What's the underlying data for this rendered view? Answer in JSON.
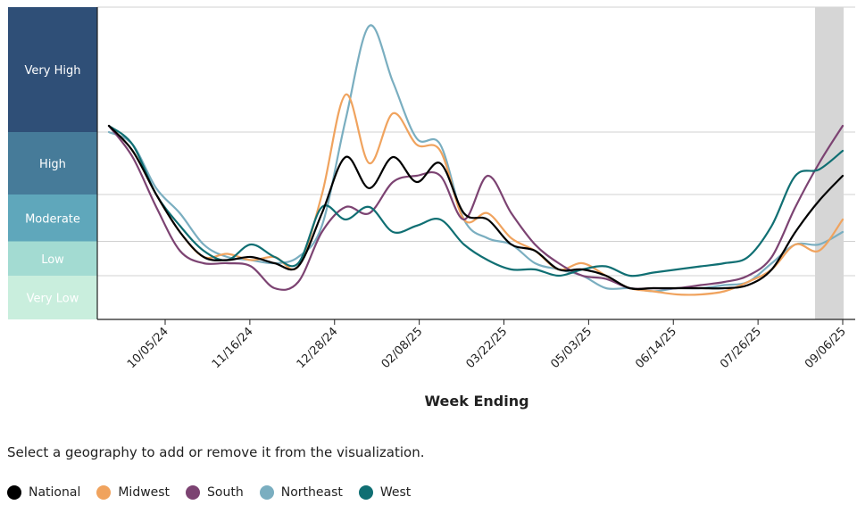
{
  "chart_data": {
    "type": "line",
    "xlabel": "Week Ending",
    "ylabel": "",
    "x_ticks": [
      "10/05/24",
      "11/16/24",
      "12/28/24",
      "02/08/25",
      "03/22/25",
      "05/03/25",
      "06/14/25",
      "07/26/25",
      "09/06/25"
    ],
    "levels": [
      {
        "name": "Very High",
        "from": 4,
        "to": 6,
        "color": "#2f4f77"
      },
      {
        "name": "High",
        "from": 3,
        "to": 4,
        "color": "#467b99"
      },
      {
        "name": "Moderate",
        "from": 2.25,
        "to": 3,
        "color": "#5fa7bb"
      },
      {
        "name": "Low",
        "from": 1.7,
        "to": 2.25,
        "color": "#a3dbd2"
      },
      {
        "name": "Very Low",
        "from": 1,
        "to": 1.7,
        "color": "#c9eedd"
      }
    ],
    "ylim": [
      1,
      6
    ],
    "series": [
      {
        "name": "National",
        "color": "#000000",
        "values": [
          4.1,
          3.7,
          3,
          2.4,
          2,
          1.95,
          2,
          1.9,
          1.85,
          2.7,
          3.6,
          3.1,
          3.6,
          3.2,
          3.5,
          2.7,
          2.6,
          2.2,
          2.1,
          1.8,
          1.8,
          1.7,
          1.5,
          1.5,
          1.5,
          1.5,
          1.5,
          1.55,
          1.8,
          2.4,
          2.9,
          3.3
        ]
      },
      {
        "name": "Midwest",
        "color": "#f0a35e",
        "values": [
          4.1,
          3.7,
          3,
          2.4,
          2,
          2.05,
          1.95,
          2,
          1.85,
          3,
          4.6,
          3.5,
          4.3,
          3.8,
          3.7,
          2.6,
          2.7,
          2.3,
          2.1,
          1.8,
          1.9,
          1.7,
          1.5,
          1.45,
          1.4,
          1.4,
          1.45,
          1.6,
          1.8,
          2.2,
          2.1,
          2.6
        ]
      },
      {
        "name": "South",
        "color": "#7c4372",
        "values": [
          4.1,
          3.6,
          2.8,
          2.1,
          1.9,
          1.9,
          1.85,
          1.5,
          1.6,
          2.4,
          2.8,
          2.7,
          3.2,
          3.3,
          3.3,
          2.6,
          3.3,
          2.7,
          2.2,
          1.9,
          1.7,
          1.65,
          1.5,
          1.5,
          1.5,
          1.55,
          1.6,
          1.7,
          2,
          2.8,
          3.5,
          4.1
        ]
      },
      {
        "name": "Northeast",
        "color": "#7aaec0",
        "values": [
          4,
          3.8,
          3.1,
          2.7,
          2.2,
          2,
          1.95,
          1.9,
          2,
          2.5,
          4.2,
          5.7,
          4.8,
          3.9,
          3.8,
          2.6,
          2.3,
          2.2,
          1.9,
          1.8,
          1.7,
          1.5,
          1.5,
          1.45,
          1.5,
          1.5,
          1.55,
          1.6,
          1.9,
          2.2,
          2.2,
          2.4
        ]
      },
      {
        "name": "West",
        "color": "#106f73",
        "values": [
          4.1,
          3.8,
          3,
          2.5,
          2.1,
          1.95,
          2.2,
          2,
          1.9,
          2.8,
          2.6,
          2.8,
          2.4,
          2.5,
          2.6,
          2.2,
          1.95,
          1.8,
          1.8,
          1.7,
          1.8,
          1.85,
          1.7,
          1.75,
          1.8,
          1.85,
          1.9,
          2,
          2.5,
          3.3,
          3.4,
          3.7
        ]
      }
    ]
  },
  "instruction": "Select a geography to add or remove it from the visualization.",
  "legend": [
    "National",
    "Midwest",
    "South",
    "Northeast",
    "West"
  ]
}
